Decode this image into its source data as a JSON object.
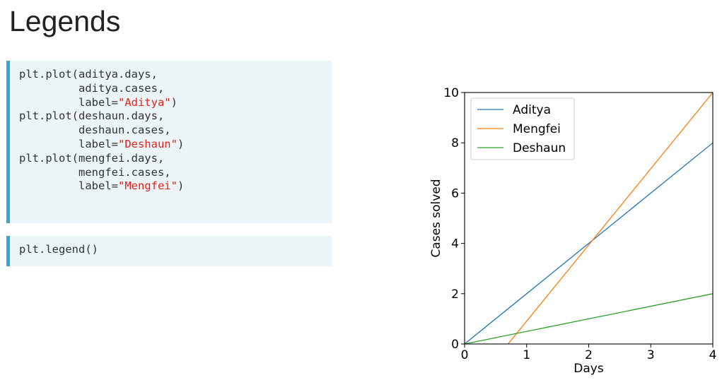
{
  "slide": {
    "title": "Legends"
  },
  "code": {
    "block1": [
      {
        "pre": "plt.plot(aditya.days,",
        "str": "",
        "post": ""
      },
      {
        "pre": "         aditya.cases,",
        "str": "",
        "post": ""
      },
      {
        "pre": "         label=",
        "str": "\"Aditya\"",
        "post": ")"
      },
      {
        "pre": "plt.plot(deshaun.days,",
        "str": "",
        "post": ""
      },
      {
        "pre": "         deshaun.cases,",
        "str": "",
        "post": ""
      },
      {
        "pre": "         label=",
        "str": "\"Deshaun\"",
        "post": ")"
      },
      {
        "pre": "plt.plot(mengfei.days,",
        "str": "",
        "post": ""
      },
      {
        "pre": "         mengfei.cases,",
        "str": "",
        "post": ""
      },
      {
        "pre": "         label=",
        "str": "\"Mengfei\"",
        "post": ")"
      }
    ],
    "block2": [
      {
        "pre": "plt.legend()",
        "str": "",
        "post": ""
      }
    ]
  },
  "chart_data": {
    "type": "line",
    "title": "",
    "xlabel": "Days",
    "ylabel": "Cases solved",
    "xlim": [
      0,
      4
    ],
    "ylim": [
      0,
      10
    ],
    "xticks": [
      "0",
      "1",
      "2",
      "3",
      "4"
    ],
    "yticks": [
      "0",
      "2",
      "4",
      "6",
      "8",
      "10"
    ],
    "grid": false,
    "legend_position": "top-left",
    "series": [
      {
        "name": "Aditya",
        "color": "#1f77b4",
        "x": [
          0,
          4
        ],
        "y": [
          0,
          8
        ]
      },
      {
        "name": "Mengfei",
        "color": "#ff7f0e",
        "x": [
          0.7,
          4
        ],
        "y": [
          0,
          10
        ]
      },
      {
        "name": "Deshaun",
        "color": "#2ca02c",
        "x": [
          0,
          4
        ],
        "y": [
          0,
          2
        ]
      }
    ]
  }
}
